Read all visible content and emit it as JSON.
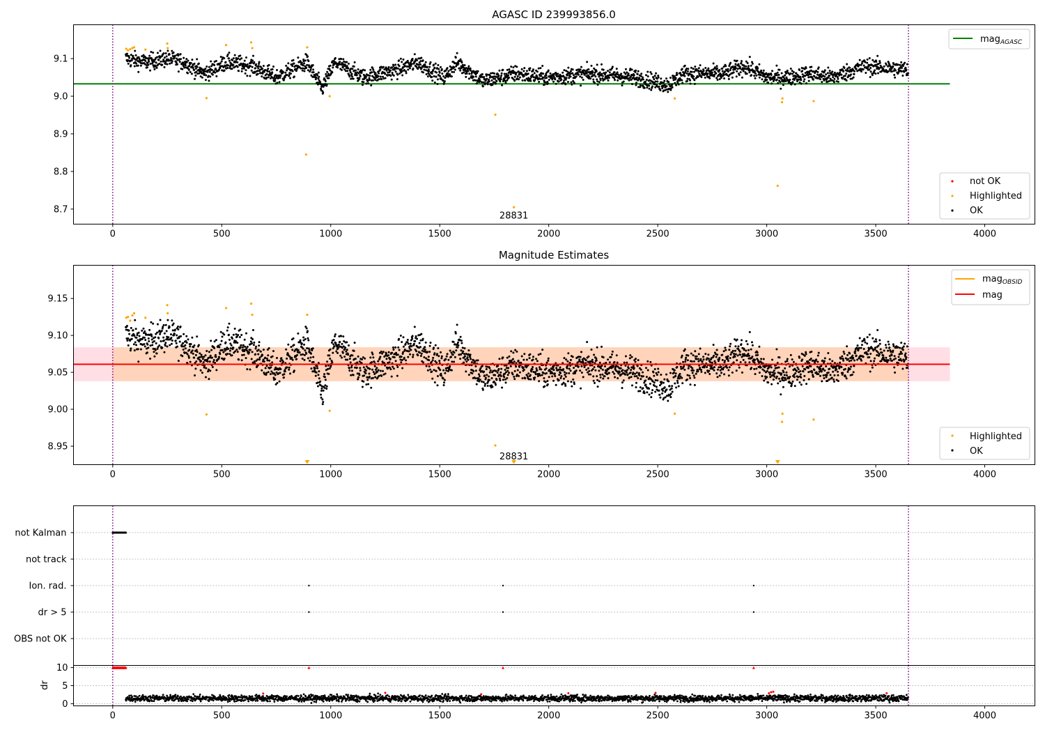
{
  "chart_data": [
    {
      "type": "scatter",
      "title": "AGASC ID 239993856.0",
      "xlabel": "",
      "ylabel": "",
      "xlim": [
        -180,
        4230
      ],
      "ylim": [
        8.66,
        9.19
      ],
      "xticks": [
        0,
        500,
        1000,
        1500,
        2000,
        2500,
        3000,
        3500,
        4000
      ],
      "yticks": [
        8.7,
        8.8,
        8.9,
        9.0,
        9.1
      ],
      "ytick_labels": [
        "8.7",
        "8.8",
        "8.9",
        "9.0",
        "9.1"
      ],
      "vlines": [
        0,
        3650
      ],
      "mag_agasc_line": {
        "y": 9.033,
        "x0": -180,
        "x1": 3840,
        "color": "#008000"
      },
      "lines_legend": [
        {
          "label": "mag",
          "sub": "AGASC",
          "color": "#008000"
        }
      ],
      "points_legend": [
        {
          "label": "not OK",
          "color": "#ff0000"
        },
        {
          "label": "Highlighted",
          "color": "#ffa500"
        },
        {
          "label": "OK",
          "color": "#000000"
        }
      ],
      "ok_series_trend": {
        "x": [
          60,
          150,
          250,
          330,
          420,
          520,
          640,
          750,
          890,
          960,
          1020,
          1150,
          1300,
          1400,
          1520,
          1580,
          1700,
          1850,
          2000,
          2200,
          2400,
          2550,
          2620,
          2800,
          2900,
          3000,
          3100,
          3200,
          3300,
          3450,
          3650
        ],
        "y": [
          9.1,
          9.09,
          9.1,
          9.09,
          9.06,
          9.09,
          9.08,
          9.05,
          9.09,
          9.02,
          9.09,
          9.05,
          9.07,
          9.09,
          9.05,
          9.09,
          9.04,
          9.06,
          9.05,
          9.06,
          9.05,
          9.03,
          9.06,
          9.06,
          9.08,
          9.05,
          9.05,
          9.06,
          9.05,
          9.08,
          9.07
        ]
      },
      "highlighted_points": [
        {
          "x": 62,
          "y": 9.126
        },
        {
          "x": 70,
          "y": 9.122
        },
        {
          "x": 80,
          "y": 9.125
        },
        {
          "x": 90,
          "y": 9.128
        },
        {
          "x": 98,
          "y": 9.13
        },
        {
          "x": 150,
          "y": 9.124
        },
        {
          "x": 250,
          "y": 9.14
        },
        {
          "x": 252,
          "y": 9.128
        },
        {
          "x": 430,
          "y": 8.995
        },
        {
          "x": 520,
          "y": 9.136
        },
        {
          "x": 635,
          "y": 9.143
        },
        {
          "x": 640,
          "y": 9.128
        },
        {
          "x": 887,
          "y": 8.845
        },
        {
          "x": 892,
          "y": 9.13
        },
        {
          "x": 995,
          "y": 9.0
        },
        {
          "x": 1755,
          "y": 8.951
        },
        {
          "x": 1840,
          "y": 8.705
        },
        {
          "x": 2578,
          "y": 8.994
        },
        {
          "x": 3050,
          "y": 8.762
        },
        {
          "x": 3070,
          "y": 8.984
        },
        {
          "x": 3072,
          "y": 8.994
        },
        {
          "x": 3215,
          "y": 8.987
        }
      ],
      "annotations": [
        {
          "text": "28831",
          "x": 1840,
          "y": 8.682
        }
      ]
    },
    {
      "type": "scatter",
      "title": "Magnitude Estimates",
      "xlabel": "",
      "ylabel": "",
      "xlim": [
        -180,
        4230
      ],
      "ylim": [
        8.925,
        9.195
      ],
      "xticks": [
        0,
        500,
        1000,
        1500,
        2000,
        2500,
        3000,
        3500,
        4000
      ],
      "yticks": [
        8.95,
        9.0,
        9.05,
        9.1,
        9.15
      ],
      "ytick_labels": [
        "8.95",
        "9.00",
        "9.05",
        "9.10",
        "9.15"
      ],
      "vlines": [
        0,
        3650
      ],
      "mag_line": {
        "y": 9.061,
        "x0": -180,
        "x1": 3840,
        "color": "#ff0000"
      },
      "mag_band": {
        "y0": 9.038,
        "y1": 9.084,
        "x0": -180,
        "x1": 3840,
        "color": "#ffc0cb"
      },
      "obsid_band": {
        "y0": 9.038,
        "y1": 9.084,
        "x0": 0,
        "x1": 3650,
        "color": "#ffa500"
      },
      "lines_legend": [
        {
          "label": "mag",
          "sub": "OBSID",
          "color": "#ffa500"
        },
        {
          "label": "mag",
          "sub": "",
          "color": "#ff0000"
        }
      ],
      "points_legend": [
        {
          "label": "Highlighted",
          "color": "#ffa500"
        },
        {
          "label": "OK",
          "color": "#000000"
        }
      ],
      "highlighted_points": [
        {
          "x": 62,
          "y": 9.124
        },
        {
          "x": 70,
          "y": 9.125
        },
        {
          "x": 80,
          "y": 9.12
        },
        {
          "x": 90,
          "y": 9.127
        },
        {
          "x": 98,
          "y": 9.13
        },
        {
          "x": 150,
          "y": 9.124
        },
        {
          "x": 250,
          "y": 9.141
        },
        {
          "x": 252,
          "y": 9.13
        },
        {
          "x": 430,
          "y": 8.993
        },
        {
          "x": 520,
          "y": 9.137
        },
        {
          "x": 635,
          "y": 9.143
        },
        {
          "x": 640,
          "y": 9.128
        },
        {
          "x": 892,
          "y": 9.128
        },
        {
          "x": 995,
          "y": 8.998
        },
        {
          "x": 1755,
          "y": 8.951
        },
        {
          "x": 2578,
          "y": 8.994
        },
        {
          "x": 3070,
          "y": 8.983
        },
        {
          "x": 3072,
          "y": 8.994
        },
        {
          "x": 3215,
          "y": 8.986
        }
      ],
      "offscale_markers": [
        {
          "x": 892
        },
        {
          "x": 1840
        },
        {
          "x": 3050
        }
      ],
      "annotations": [
        {
          "text": "28831",
          "x": 1840,
          "y": 8.936
        }
      ]
    },
    {
      "type": "scatter",
      "title": "",
      "xlabel": "",
      "ylabel": "",
      "xlim": [
        -180,
        4230
      ],
      "categories": [
        "not Kalman",
        "not track",
        "Ion. rad.",
        "dr > 5",
        "OBS not OK"
      ],
      "vlines": [
        0,
        3650
      ],
      "flag_points": [
        {
          "category": "not Kalman",
          "x_range": [
            0,
            60
          ]
        },
        {
          "category": "Ion. rad.",
          "x": [
            900,
            1790,
            2940
          ]
        },
        {
          "category": "dr > 5",
          "x": [
            900,
            1790,
            2940
          ]
        }
      ]
    },
    {
      "type": "scatter",
      "title": "",
      "xlabel": "",
      "ylabel": "dr",
      "xlim": [
        -180,
        4230
      ],
      "ylim": [
        -0.6,
        10.6
      ],
      "xticks": [
        0,
        500,
        1000,
        1500,
        2000,
        2500,
        3000,
        3500,
        4000
      ],
      "yticks": [
        0,
        5,
        10
      ],
      "ytick_labels": [
        "0",
        "5",
        "10"
      ],
      "vlines": [
        0,
        3650
      ],
      "dr_typical_range": [
        0.5,
        2.5
      ],
      "red_markers_at_10": [
        {
          "x_range": [
            0,
            60
          ]
        },
        {
          "x": 900
        },
        {
          "x": 1790
        },
        {
          "x": 2940
        }
      ],
      "red_points": [
        {
          "x": 690,
          "y": 2.8
        },
        {
          "x": 1250,
          "y": 3.0
        },
        {
          "x": 1690,
          "y": 2.6
        },
        {
          "x": 2090,
          "y": 2.9
        },
        {
          "x": 2490,
          "y": 3.0
        },
        {
          "x": 3010,
          "y": 2.9
        },
        {
          "x": 3020,
          "y": 3.2
        },
        {
          "x": 3030,
          "y": 3.3
        },
        {
          "x": 3550,
          "y": 2.9
        }
      ]
    }
  ]
}
